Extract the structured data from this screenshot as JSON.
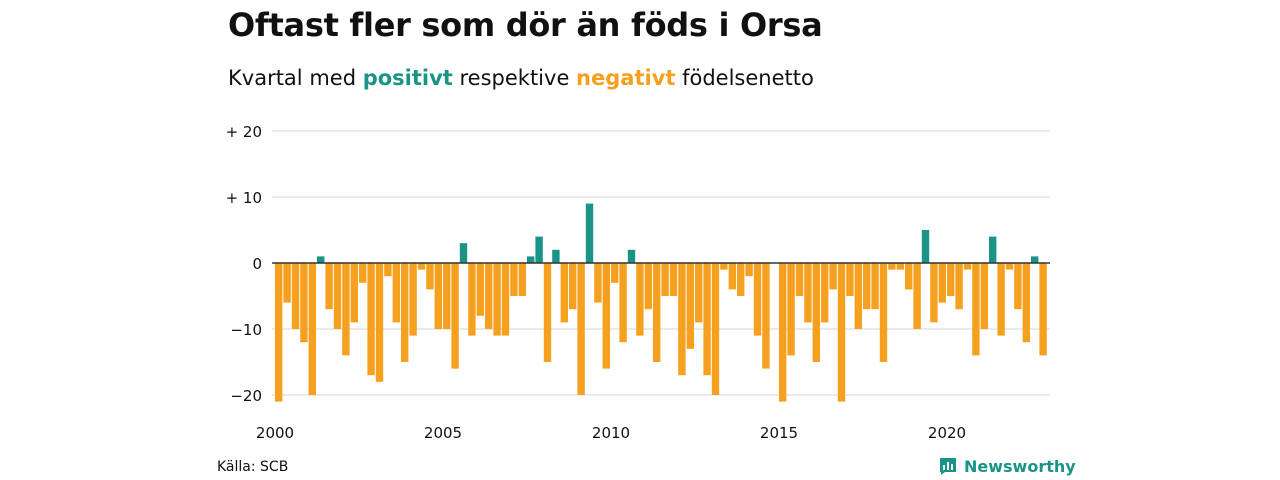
{
  "title": "Oftast fler som dör än föds i Orsa",
  "subtitle": {
    "prefix": "Kvartal med ",
    "positive_word": "positivt",
    "middle": " respektive ",
    "negative_word": "negativt",
    "suffix": " födelsenetto"
  },
  "source": "Källa: SCB",
  "brand": "Newsworthy",
  "colors": {
    "positive": "#1a9486",
    "negative": "#f5a11f",
    "grid": "#dddddd",
    "zero": "#333333"
  },
  "chart_data": {
    "type": "bar",
    "x_start": "2000 Q1",
    "x_tick_labels": [
      "2000",
      "2005",
      "2010",
      "2015",
      "2020"
    ],
    "y_tick_labels": [
      "+ 20",
      "+ 10",
      "0",
      "−10",
      "−20"
    ],
    "y_ticks": [
      20,
      10,
      0,
      -10,
      -20
    ],
    "ylim": [
      -21,
      20
    ],
    "grid": true,
    "values": [
      -21,
      -6,
      -10,
      -12,
      -20,
      1,
      -7,
      -10,
      -14,
      -9,
      -3,
      -17,
      -18,
      -2,
      -9,
      -15,
      -11,
      -1,
      -4,
      -10,
      -10,
      -16,
      3,
      -11,
      -8,
      -10,
      -11,
      -11,
      -5,
      -5,
      1,
      4,
      -15,
      2,
      -9,
      -7,
      -20,
      9,
      -6,
      -16,
      -3,
      -12,
      2,
      -11,
      -7,
      -15,
      -5,
      -5,
      -17,
      -13,
      -9,
      -17,
      -20,
      -1,
      -4,
      -5,
      -2,
      -11,
      -16,
      0,
      -21,
      -14,
      -5,
      -9,
      -15,
      -9,
      -4,
      -21,
      -5,
      -10,
      -7,
      -7,
      -15,
      -1,
      -1,
      -4,
      -10,
      5,
      -9,
      -6,
      -5,
      -7,
      -1,
      -14,
      -10,
      4,
      -11,
      -1,
      -7,
      -12,
      1,
      -14
    ]
  }
}
